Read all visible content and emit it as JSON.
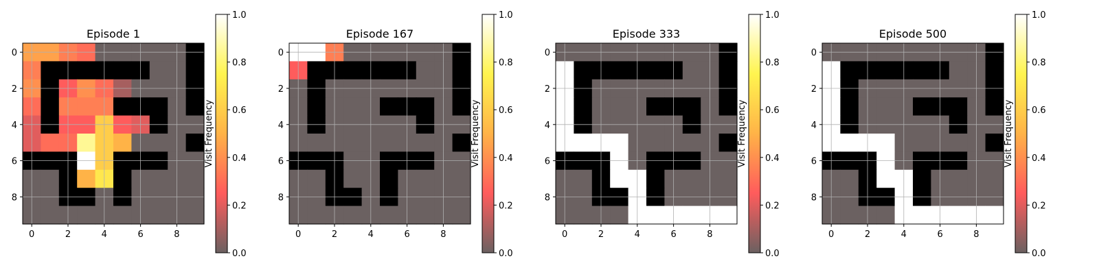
{
  "figure": {
    "colorbar_label": "Visit Frequency"
  },
  "chart_data": [
    {
      "type": "heatmap",
      "title": "Episode 1",
      "x_ticks": [
        "0",
        "2",
        "4",
        "6",
        "8"
      ],
      "y_ticks": [
        "0",
        "2",
        "4",
        "6",
        "8"
      ],
      "colorbar_ticks": [
        "0.0",
        "0.2",
        "0.4",
        "0.6",
        "0.8",
        "1.0"
      ],
      "colorbar_label": "Visit Frequency",
      "colormap": [
        "#6b6161",
        "#ff5c5c",
        "#ffb347",
        "#fff44f",
        "#ffffff"
      ],
      "grid": true,
      "walls": [
        [
          0,
          9
        ],
        [
          1,
          1
        ],
        [
          1,
          2
        ],
        [
          1,
          3
        ],
        [
          1,
          4
        ],
        [
          1,
          5
        ],
        [
          1,
          6
        ],
        [
          1,
          9
        ],
        [
          2,
          1
        ],
        [
          2,
          9
        ],
        [
          3,
          1
        ],
        [
          3,
          5
        ],
        [
          3,
          6
        ],
        [
          3,
          7
        ],
        [
          3,
          9
        ],
        [
          4,
          1
        ],
        [
          4,
          7
        ],
        [
          5,
          9
        ],
        [
          6,
          0
        ],
        [
          6,
          1
        ],
        [
          6,
          2
        ],
        [
          6,
          5
        ],
        [
          6,
          6
        ],
        [
          6,
          7
        ],
        [
          7,
          2
        ],
        [
          7,
          5
        ],
        [
          8,
          2
        ],
        [
          8,
          3
        ],
        [
          8,
          5
        ]
      ],
      "visits": [
        [
          0.45,
          0.45,
          0.35,
          0.3,
          0,
          0,
          0,
          0,
          0,
          0
        ],
        [
          0.35,
          0,
          0,
          0,
          0,
          0,
          0,
          0,
          0,
          0
        ],
        [
          0.4,
          0,
          0.25,
          0.4,
          0.3,
          0.1,
          0,
          0,
          0,
          0
        ],
        [
          0.3,
          0,
          0.35,
          0.35,
          0.35,
          0,
          0,
          0,
          0,
          0
        ],
        [
          0.2,
          0,
          0.25,
          0.25,
          0.6,
          0.25,
          0.2,
          0,
          0,
          0
        ],
        [
          0.2,
          0.3,
          0.3,
          0.85,
          0.6,
          0.5,
          0,
          0,
          0,
          0
        ],
        [
          0,
          0,
          0,
          1.0,
          0.6,
          0,
          0,
          0,
          0,
          0
        ],
        [
          0,
          0,
          0,
          0.5,
          0.7,
          0,
          0,
          0,
          0,
          0
        ],
        [
          0,
          0,
          0,
          0,
          0,
          0,
          0,
          0,
          0,
          0
        ],
        [
          0,
          0,
          0,
          0,
          0,
          0,
          0,
          0,
          0,
          0
        ]
      ]
    },
    {
      "type": "heatmap",
      "title": "Episode 167",
      "x_ticks": [
        "0",
        "2",
        "4",
        "6",
        "8"
      ],
      "y_ticks": [
        "0",
        "2",
        "4",
        "6",
        "8"
      ],
      "colorbar_ticks": [
        "0.0",
        "0.2",
        "0.4",
        "0.6",
        "0.8",
        "1.0"
      ],
      "colorbar_label": "Visit Frequency",
      "colormap": [
        "#6b6161",
        "#ff5c5c",
        "#ffb347",
        "#fff44f",
        "#ffffff"
      ],
      "grid": true,
      "walls": [
        [
          0,
          9
        ],
        [
          1,
          1
        ],
        [
          1,
          2
        ],
        [
          1,
          3
        ],
        [
          1,
          4
        ],
        [
          1,
          5
        ],
        [
          1,
          6
        ],
        [
          1,
          9
        ],
        [
          2,
          1
        ],
        [
          2,
          9
        ],
        [
          3,
          1
        ],
        [
          3,
          5
        ],
        [
          3,
          6
        ],
        [
          3,
          7
        ],
        [
          3,
          9
        ],
        [
          4,
          1
        ],
        [
          4,
          7
        ],
        [
          5,
          9
        ],
        [
          6,
          0
        ],
        [
          6,
          1
        ],
        [
          6,
          2
        ],
        [
          6,
          5
        ],
        [
          6,
          6
        ],
        [
          6,
          7
        ],
        [
          7,
          2
        ],
        [
          7,
          5
        ],
        [
          8,
          2
        ],
        [
          8,
          3
        ],
        [
          8,
          5
        ]
      ],
      "visits": [
        [
          1.0,
          1.0,
          0.35,
          0,
          0,
          0,
          0,
          0,
          0,
          0
        ],
        [
          0.25,
          0,
          0,
          0,
          0,
          0,
          0,
          0,
          0,
          0
        ],
        [
          0,
          0,
          0,
          0,
          0,
          0,
          0,
          0,
          0,
          0
        ],
        [
          0,
          0,
          0,
          0,
          0,
          0,
          0,
          0,
          0,
          0
        ],
        [
          0,
          0,
          0,
          0,
          0,
          0,
          0,
          0,
          0,
          0
        ],
        [
          0,
          0,
          0,
          0,
          0,
          0,
          0,
          0,
          0,
          0
        ],
        [
          0,
          0,
          0,
          0,
          0,
          0,
          0,
          0,
          0,
          0
        ],
        [
          0,
          0,
          0,
          0,
          0,
          0,
          0,
          0,
          0,
          0
        ],
        [
          0,
          0,
          0,
          0,
          0,
          0,
          0,
          0,
          0,
          0
        ],
        [
          0,
          0,
          0,
          0,
          0,
          0,
          0,
          0,
          0,
          0
        ]
      ]
    },
    {
      "type": "heatmap",
      "title": "Episode 333",
      "x_ticks": [
        "0",
        "2",
        "4",
        "6",
        "8"
      ],
      "y_ticks": [
        "0",
        "2",
        "4",
        "6",
        "8"
      ],
      "colorbar_ticks": [
        "0.0",
        "0.2",
        "0.4",
        "0.6",
        "0.8",
        "1.0"
      ],
      "colorbar_label": "Visit Frequency",
      "colormap": [
        "#6b6161",
        "#ff5c5c",
        "#ffb347",
        "#fff44f",
        "#ffffff"
      ],
      "grid": true,
      "walls": [
        [
          0,
          9
        ],
        [
          1,
          1
        ],
        [
          1,
          2
        ],
        [
          1,
          3
        ],
        [
          1,
          4
        ],
        [
          1,
          5
        ],
        [
          1,
          6
        ],
        [
          1,
          9
        ],
        [
          2,
          1
        ],
        [
          2,
          9
        ],
        [
          3,
          1
        ],
        [
          3,
          5
        ],
        [
          3,
          6
        ],
        [
          3,
          7
        ],
        [
          3,
          9
        ],
        [
          4,
          1
        ],
        [
          4,
          7
        ],
        [
          5,
          9
        ],
        [
          6,
          0
        ],
        [
          6,
          1
        ],
        [
          6,
          2
        ],
        [
          6,
          5
        ],
        [
          6,
          6
        ],
        [
          6,
          7
        ],
        [
          7,
          2
        ],
        [
          7,
          5
        ],
        [
          8,
          2
        ],
        [
          8,
          3
        ],
        [
          8,
          5
        ]
      ],
      "visits": [
        [
          0,
          0,
          0,
          0,
          0,
          0,
          0,
          0,
          0,
          0
        ],
        [
          1.0,
          0,
          0,
          0,
          0,
          0,
          0,
          0,
          0,
          0
        ],
        [
          1.0,
          0,
          0,
          0,
          0,
          0,
          0,
          0,
          0,
          0
        ],
        [
          1.0,
          0,
          0,
          0,
          0,
          0,
          0,
          0,
          0,
          0
        ],
        [
          1.0,
          0,
          0,
          0,
          0,
          0,
          0,
          0,
          0,
          0
        ],
        [
          1.0,
          1.0,
          1.0,
          1.0,
          0,
          0,
          0,
          0,
          0,
          0
        ],
        [
          0,
          0,
          0,
          1.0,
          0,
          0,
          0,
          0,
          0,
          0
        ],
        [
          0,
          0,
          0,
          1.0,
          1.0,
          0,
          0,
          0,
          0,
          0
        ],
        [
          0,
          0,
          0,
          0,
          1.0,
          0,
          0,
          0,
          0,
          0
        ],
        [
          0,
          0,
          0,
          0,
          1.0,
          1.0,
          1.0,
          1.0,
          1.0,
          1.0
        ]
      ]
    },
    {
      "type": "heatmap",
      "title": "Episode 500",
      "x_ticks": [
        "0",
        "2",
        "4",
        "6",
        "8"
      ],
      "y_ticks": [
        "0",
        "2",
        "4",
        "6",
        "8"
      ],
      "colorbar_ticks": [
        "0.0",
        "0.2",
        "0.4",
        "0.6",
        "0.8",
        "1.0"
      ],
      "colorbar_label": "Visit Frequency",
      "colormap": [
        "#6b6161",
        "#ff5c5c",
        "#ffb347",
        "#fff44f",
        "#ffffff"
      ],
      "grid": true,
      "walls": [
        [
          0,
          9
        ],
        [
          1,
          1
        ],
        [
          1,
          2
        ],
        [
          1,
          3
        ],
        [
          1,
          4
        ],
        [
          1,
          5
        ],
        [
          1,
          6
        ],
        [
          1,
          9
        ],
        [
          2,
          1
        ],
        [
          2,
          9
        ],
        [
          3,
          1
        ],
        [
          3,
          5
        ],
        [
          3,
          6
        ],
        [
          3,
          7
        ],
        [
          3,
          9
        ],
        [
          4,
          1
        ],
        [
          4,
          7
        ],
        [
          5,
          9
        ],
        [
          6,
          0
        ],
        [
          6,
          1
        ],
        [
          6,
          2
        ],
        [
          6,
          5
        ],
        [
          6,
          6
        ],
        [
          6,
          7
        ],
        [
          7,
          2
        ],
        [
          7,
          5
        ],
        [
          8,
          2
        ],
        [
          8,
          3
        ],
        [
          8,
          5
        ]
      ],
      "visits": [
        [
          0,
          0,
          0,
          0,
          0,
          0,
          0,
          0,
          0,
          0
        ],
        [
          1.0,
          0,
          0,
          0,
          0,
          0,
          0,
          0,
          0,
          0
        ],
        [
          1.0,
          0,
          0,
          0,
          0,
          0,
          0,
          0,
          0,
          0
        ],
        [
          1.0,
          0,
          0,
          0,
          0,
          0,
          0,
          0,
          0,
          0
        ],
        [
          1.0,
          0,
          0,
          0,
          0,
          0,
          0,
          0,
          0,
          0
        ],
        [
          1.0,
          1.0,
          1.0,
          1.0,
          0,
          0,
          0,
          0,
          0,
          0
        ],
        [
          0,
          0,
          0,
          1.0,
          0,
          0,
          0,
          0,
          0,
          0
        ],
        [
          0,
          0,
          0,
          1.0,
          1.0,
          0,
          0,
          0,
          0,
          0
        ],
        [
          0,
          0,
          0,
          0,
          1.0,
          0,
          0,
          0,
          0,
          0
        ],
        [
          0,
          0,
          0,
          0,
          1.0,
          1.0,
          1.0,
          1.0,
          1.0,
          1.0
        ]
      ]
    }
  ]
}
